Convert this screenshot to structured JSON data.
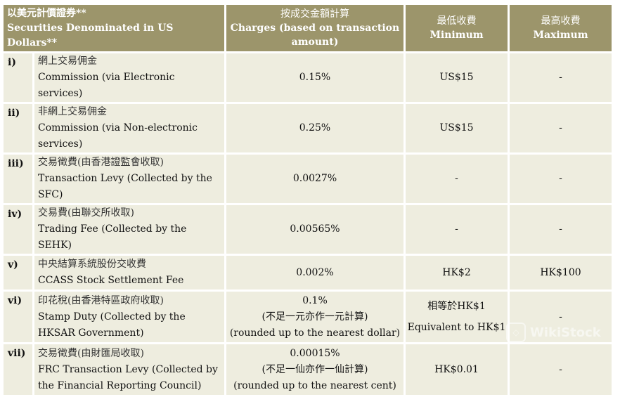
{
  "header": {
    "col0_zh": "以美元計價證券**",
    "col0_en": "Securities Denominated in US Dollars**",
    "col1_zh": "按成交金額計算",
    "col1_en": "Charges (based on transaction amount)",
    "col2_zh": "最低收費",
    "col2_en": "Minimum",
    "col3_zh": "最高收費",
    "col3_en": "Maximum"
  },
  "rows": [
    {
      "num": "i)",
      "zh": "網上交易佣金",
      "en": "Commission (via Electronic services)",
      "charge": [
        "0.15%"
      ],
      "min": [
        "US$15"
      ],
      "max": [
        "-"
      ]
    },
    {
      "num": "ii)",
      "zh": "非網上交易佣金",
      "en": "Commission (via Non-electronic services)",
      "charge": [
        "0.25%"
      ],
      "min": [
        "US$15"
      ],
      "max": [
        "-"
      ]
    },
    {
      "num": "iii)",
      "zh": "交易徵費(由香港證監會收取)",
      "en": "Transaction Levy (Collected by the SFC)",
      "charge": [
        "0.0027%"
      ],
      "min": [
        "-"
      ],
      "max": [
        "-"
      ]
    },
    {
      "num": "iv)",
      "zh": "交易費(由聯交所收取)",
      "en": "Trading Fee (Collected by the SEHK)",
      "charge": [
        "0.00565%"
      ],
      "min": [
        "-"
      ],
      "max": [
        "-"
      ]
    },
    {
      "num": "v)",
      "zh": "中央結算系統股份交收費",
      "en": "CCASS Stock Settlement Fee",
      "charge": [
        "0.002%"
      ],
      "min": [
        "HK$2"
      ],
      "max": [
        "HK$100"
      ]
    },
    {
      "num": "vi)",
      "zh": "印花稅(由香港特區政府收取)",
      "en": "Stamp Duty (Collected by the HKSAR Government)",
      "charge": [
        "0.1%",
        "(不足一元亦作一元計算)",
        "(rounded up to the nearest dollar)"
      ],
      "min": [
        "相等於HK$1",
        "Equivalent to HK$1"
      ],
      "max": [
        "-"
      ]
    },
    {
      "num": "vii)",
      "zh": "交易徵費(由財匯局收取)",
      "en": "FRC Transaction Levy (Collected by the Financial Reporting Council)",
      "charge": [
        "0.00015%",
        "(不足一仙亦作一仙計算)",
        "(rounded up to the nearest cent)"
      ],
      "min": [
        "HK$0.01"
      ],
      "max": [
        "-"
      ]
    }
  ],
  "watermark": "WikiStock"
}
